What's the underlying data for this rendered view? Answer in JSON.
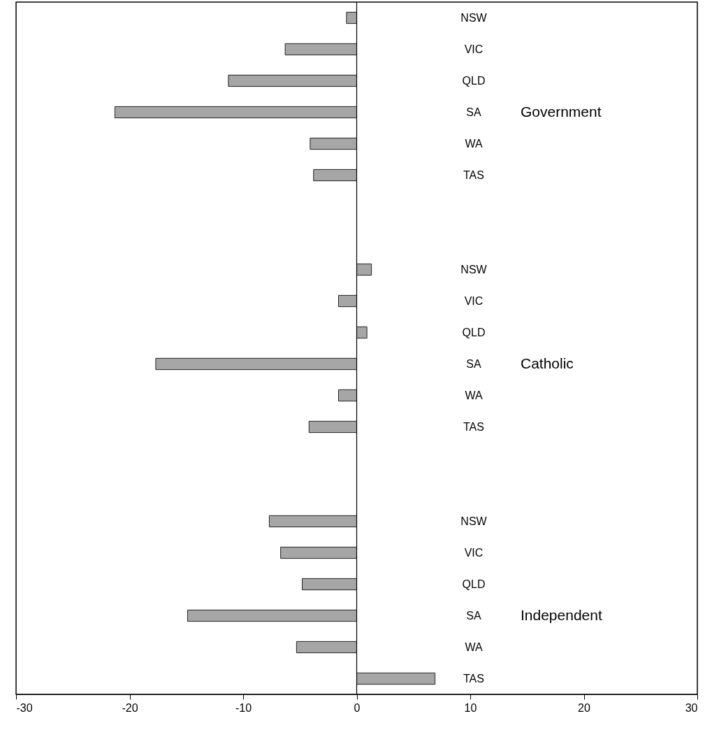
{
  "chart_data": {
    "type": "bar",
    "orientation": "horizontal",
    "categories": [
      "NSW",
      "VIC",
      "QLD",
      "SA",
      "WA",
      "TAS",
      null,
      null,
      "NSW",
      "VIC",
      "QLD",
      "SA",
      "WA",
      "TAS",
      null,
      null,
      "NSW",
      "VIC",
      "QLD",
      "SA",
      "WA",
      "TAS"
    ],
    "values": [
      -0.9,
      -6.3,
      -11.3,
      -21.3,
      -4.1,
      -3.8,
      null,
      null,
      1.3,
      -1.6,
      0.9,
      -17.7,
      -1.6,
      -4.2,
      null,
      null,
      -7.7,
      -6.7,
      -4.8,
      -14.9,
      -5.3,
      6.9
    ],
    "color": "#a6a6a6",
    "xlim": [
      -30,
      30
    ],
    "xticks": [
      -30,
      -20,
      -10,
      0,
      10,
      20,
      30
    ],
    "ref_lines": [
      {
        "axis": "x",
        "value": 0
      }
    ],
    "annotations": [
      "Government",
      "Catholic",
      "Independent"
    ],
    "grid": false
  }
}
